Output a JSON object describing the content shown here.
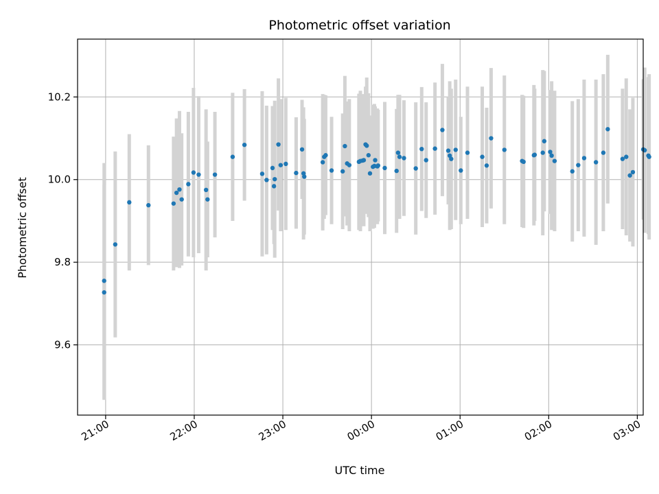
{
  "chart_data": {
    "type": "scatter",
    "title": "Photometric offset variation",
    "xlabel": "UTC time",
    "ylabel": "Photometric offset",
    "grid": true,
    "legend": "none",
    "x_ticks": [
      "21:00",
      "22:00",
      "23:00",
      "00:00",
      "01:00",
      "02:00",
      "03:00"
    ],
    "x_tick_values": [
      0,
      60,
      120,
      180,
      240,
      300,
      360
    ],
    "x_range": [
      -19,
      364
    ],
    "y_ticks": [
      "9.6",
      "9.8",
      "10.0",
      "10.2"
    ],
    "y_tick_values": [
      9.6,
      9.8,
      10.0,
      10.2
    ],
    "ylim": [
      9.43,
      10.34
    ],
    "point_color": "#1f77b4",
    "errorbar_color": "#d3d3d3",
    "series": [
      {
        "x": [
          -1,
          -1,
          6.5,
          16,
          29,
          46,
          48,
          50,
          51.5,
          56,
          59.5,
          63,
          68,
          69,
          74,
          86,
          94,
          106,
          109,
          113,
          114,
          114.5,
          117,
          118.5,
          122,
          129,
          133,
          134,
          134.5,
          147,
          148,
          149,
          153,
          160.5,
          162,
          163.5,
          165,
          171.5,
          172.5,
          174,
          174.8,
          176,
          176.8,
          178,
          179,
          181,
          182,
          182.5,
          184,
          184.5,
          189,
          197,
          198,
          199,
          202,
          210,
          214,
          217,
          223,
          228,
          232,
          233,
          234,
          237,
          240.5,
          245,
          255,
          258,
          261,
          270,
          282,
          283,
          290,
          290.5,
          296,
          297,
          301,
          302,
          304,
          316,
          320,
          324,
          332,
          337,
          340,
          350,
          352.5,
          355,
          357,
          364,
          365,
          367.5,
          368
        ],
        "y": [
          9.755,
          9.727,
          9.843,
          9.945,
          9.938,
          9.942,
          9.968,
          9.976,
          9.952,
          9.989,
          10.017,
          10.012,
          9.975,
          9.952,
          10.012,
          10.055,
          10.084,
          10.014,
          9.999,
          10.028,
          9.984,
          10.001,
          10.085,
          10.035,
          10.038,
          10.016,
          10.073,
          10.015,
          10.007,
          10.042,
          10.055,
          10.059,
          10.022,
          10.02,
          10.081,
          10.039,
          10.035,
          10.043,
          10.045,
          10.046,
          10.047,
          10.085,
          10.082,
          10.059,
          10.015,
          10.031,
          10.033,
          10.047,
          10.032,
          10.034,
          10.028,
          10.021,
          10.065,
          10.055,
          10.052,
          10.027,
          10.074,
          10.047,
          10.075,
          10.12,
          10.07,
          10.058,
          10.05,
          10.072,
          10.022,
          10.065,
          10.055,
          10.034,
          10.1,
          10.072,
          10.045,
          10.043,
          10.059,
          10.06,
          10.065,
          10.093,
          10.067,
          10.058,
          10.045,
          10.02,
          10.035,
          10.052,
          10.042,
          10.065,
          10.122,
          10.05,
          10.055,
          10.01,
          10.018,
          10.073,
          10.071,
          10.058,
          10.055
        ],
        "err": [
          0.285,
          0.26,
          0.225,
          0.165,
          0.145,
          0.162,
          0.18,
          0.19,
          0.16,
          0.175,
          0.205,
          0.19,
          0.195,
          0.14,
          0.152,
          0.155,
          0.135,
          0.2,
          0.18,
          0.15,
          0.14,
          0.19,
          0.16,
          0.16,
          0.16,
          0.135,
          0.12,
          0.16,
          0.14,
          0.165,
          0.15,
          0.145,
          0.13,
          0.14,
          0.17,
          0.15,
          0.16,
          0.165,
          0.17,
          0.15,
          0.16,
          0.14,
          0.165,
          0.15,
          0.14,
          0.15,
          0.15,
          0.13,
          0.14,
          0.135,
          0.16,
          0.15,
          0.14,
          0.15,
          0.14,
          0.16,
          0.15,
          0.14,
          0.16,
          0.16,
          0.13,
          0.18,
          0.17,
          0.17,
          0.13,
          0.16,
          0.17,
          0.14,
          0.17,
          0.18,
          0.16,
          0.16,
          0.17,
          0.16,
          0.2,
          0.17,
          0.15,
          0.18,
          0.17,
          0.17,
          0.16,
          0.19,
          0.2,
          0.19,
          0.18,
          0.17,
          0.19,
          0.16,
          0.18,
          0.17,
          0.2,
          0.19,
          0.2
        ]
      }
    ]
  }
}
